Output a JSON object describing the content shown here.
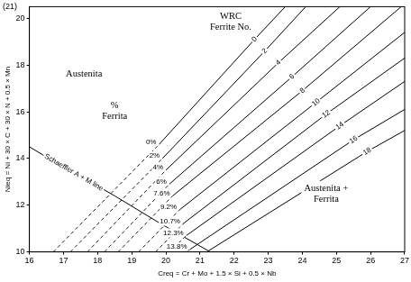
{
  "chart_data": {
    "type": "line",
    "figure_label": "(21)",
    "x_label": "Creq = Cr + Mo + 1.5 × Si + 0.5 × Nb",
    "y_label": "Nieq = Ni + 30 × C + 30 × N + 0.5 × Mn",
    "xlim": [
      16,
      27
    ],
    "ylim": [
      10,
      20.5
    ],
    "xticks": [
      16,
      17,
      18,
      19,
      20,
      21,
      22,
      23,
      24,
      25,
      26,
      27
    ],
    "yticks": [
      10,
      12,
      14,
      16,
      18,
      20
    ],
    "grid": false,
    "color": "#000000",
    "series": [
      {
        "name": "0%",
        "line_style": "dashed",
        "x": [
          16.7,
          19.8
        ],
        "values": [
          10,
          14.6
        ]
      },
      {
        "name": "2%",
        "line_style": "dashed",
        "x": [
          17.2,
          19.9
        ],
        "values": [
          10,
          14.0
        ]
      },
      {
        "name": "4%",
        "line_style": "dashed",
        "x": [
          17.7,
          20.0
        ],
        "values": [
          10,
          13.5
        ]
      },
      {
        "name": "6%",
        "line_style": "dashed",
        "x": [
          18.2,
          20.1
        ],
        "values": [
          10,
          12.9
        ]
      },
      {
        "name": "7.6%",
        "line_style": "dashed",
        "x": [
          18.6,
          20.2
        ],
        "values": [
          10,
          12.4
        ]
      },
      {
        "name": "9.2%",
        "line_style": "dashed",
        "x": [
          19.2,
          20.4
        ],
        "values": [
          10,
          11.8
        ]
      },
      {
        "name": "10.7%",
        "line_style": "dashed",
        "x": [
          19.7,
          20.5
        ],
        "values": [
          10,
          11.2
        ]
      },
      {
        "name": "12.3%",
        "line_style": "dashed",
        "x": [
          20.1,
          20.6
        ],
        "values": [
          10,
          10.7
        ]
      },
      {
        "name": "13.8%",
        "line_style": "dashed",
        "x": [
          20.6,
          20.7
        ],
        "values": [
          10,
          10.1
        ]
      },
      {
        "name": "0",
        "line_style": "solid",
        "x": [
          19.8,
          22.6,
          23.5
        ],
        "values": [
          14.6,
          19.1,
          20.5
        ]
      },
      {
        "name": "2",
        "line_style": "solid",
        "x": [
          19.9,
          22.9,
          24.1
        ],
        "values": [
          14.0,
          18.6,
          20.5
        ]
      },
      {
        "name": "4",
        "line_style": "solid",
        "x": [
          20.0,
          23.3,
          25.1
        ],
        "values": [
          13.5,
          18.1,
          20.5
        ]
      },
      {
        "name": "6",
        "line_style": "solid",
        "x": [
          20.1,
          23.7,
          26.0
        ],
        "values": [
          12.9,
          17.5,
          20.5
        ]
      },
      {
        "name": "8",
        "line_style": "solid",
        "x": [
          20.2,
          24.0,
          26.9
        ],
        "values": [
          12.4,
          16.9,
          20.5
        ]
      },
      {
        "name": "10",
        "line_style": "solid",
        "x": [
          20.4,
          24.4,
          27
        ],
        "values": [
          11.8,
          16.4,
          19.4
        ]
      },
      {
        "name": "12",
        "line_style": "solid",
        "x": [
          20.5,
          24.7,
          27
        ],
        "values": [
          11.2,
          15.9,
          18.3
        ]
      },
      {
        "name": "14",
        "line_style": "solid",
        "x": [
          20.6,
          25.1,
          27
        ],
        "values": [
          10.7,
          15.4,
          17.3
        ]
      },
      {
        "name": "16",
        "line_style": "solid",
        "x": [
          20.7,
          25.5,
          27
        ],
        "values": [
          10.1,
          14.8,
          16.1
        ]
      },
      {
        "name": "18",
        "line_style": "solid",
        "x": [
          21.2,
          25.9,
          27
        ],
        "values": [
          10.0,
          14.3,
          15.2
        ]
      },
      {
        "name": "Schaeffler A + M line",
        "line_style": "solid",
        "x": [
          16,
          16.4,
          16.9,
          17.3,
          18.5,
          19.8,
          21.3
        ],
        "values": [
          14.5,
          14.15,
          13.75,
          13.4,
          12.4,
          11.25,
          10.0
        ]
      }
    ],
    "annotations": [
      {
        "text": [
          "Austenita"
        ],
        "x": 17.6,
        "y": 17.6
      },
      {
        "text": [
          "%",
          "Ferrita"
        ],
        "x": 18.5,
        "y": 16.05
      },
      {
        "text": [
          "WRC",
          "Ferrite No."
        ],
        "x": 21.9,
        "y": 19.85
      },
      {
        "text": [
          "Austenita +",
          "Ferrita"
        ],
        "x": 24.7,
        "y": 12.5
      }
    ]
  }
}
